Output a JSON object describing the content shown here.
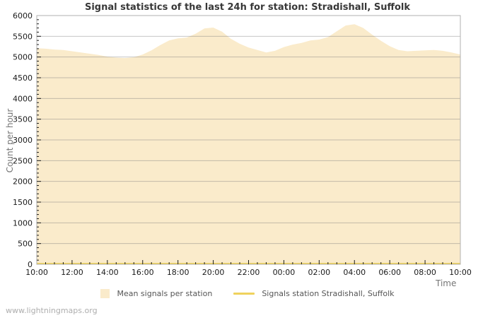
{
  "header": {
    "title": "Signal statistics of the last 24h for station: Stradishall, Suffolk"
  },
  "chart_data": {
    "type": "area",
    "title": "Signal statistics of the last 24h for station: Stradishall, Suffolk",
    "xlabel": "Time",
    "ylabel": "Count per hour",
    "ylim": [
      0,
      6000
    ],
    "y_major_step": 500,
    "y_minor_step": 100,
    "x_span_hours": 24,
    "x_start_label": "10:00",
    "x_major_tick_hours": 2,
    "x_minor_tick_hours": 0.5,
    "x_tick_labels": [
      "10:00",
      "12:00",
      "14:00",
      "16:00",
      "18:00",
      "20:00",
      "22:00",
      "00:00",
      "02:00",
      "04:00",
      "06:00",
      "08:00",
      "10:00"
    ],
    "grid": "horizontal-only",
    "legend_position": "bottom-center",
    "sample_step_hours": 0.5,
    "series": [
      {
        "name": "Mean signals per station",
        "kind": "area",
        "color": "#FAEBCB",
        "values": [
          5210,
          5200,
          5180,
          5170,
          5140,
          5110,
          5080,
          5050,
          5010,
          4985,
          4975,
          4995,
          5060,
          5160,
          5290,
          5400,
          5450,
          5470,
          5560,
          5690,
          5710,
          5610,
          5440,
          5320,
          5230,
          5170,
          5110,
          5150,
          5240,
          5300,
          5340,
          5400,
          5420,
          5480,
          5620,
          5760,
          5790,
          5700,
          5540,
          5390,
          5260,
          5170,
          5140,
          5150,
          5160,
          5170,
          5150,
          5110,
          5060
        ]
      },
      {
        "name": "Signals station Stradishall, Suffolk",
        "kind": "line",
        "color": "#EFD25D",
        "stroke_width": 2,
        "constant_value": 0
      }
    ],
    "colors": {
      "frame": "#b2b2b2",
      "grid": "#c9c9c9",
      "tick": "#1a1a1a",
      "tick_text": "#1a1a1a",
      "muted_text": "#757575",
      "title_text": "#383838",
      "legend_text": "#555555",
      "watermark_text": "#aeaeae"
    }
  },
  "footer": {
    "watermark": "www.lightningmaps.org"
  }
}
